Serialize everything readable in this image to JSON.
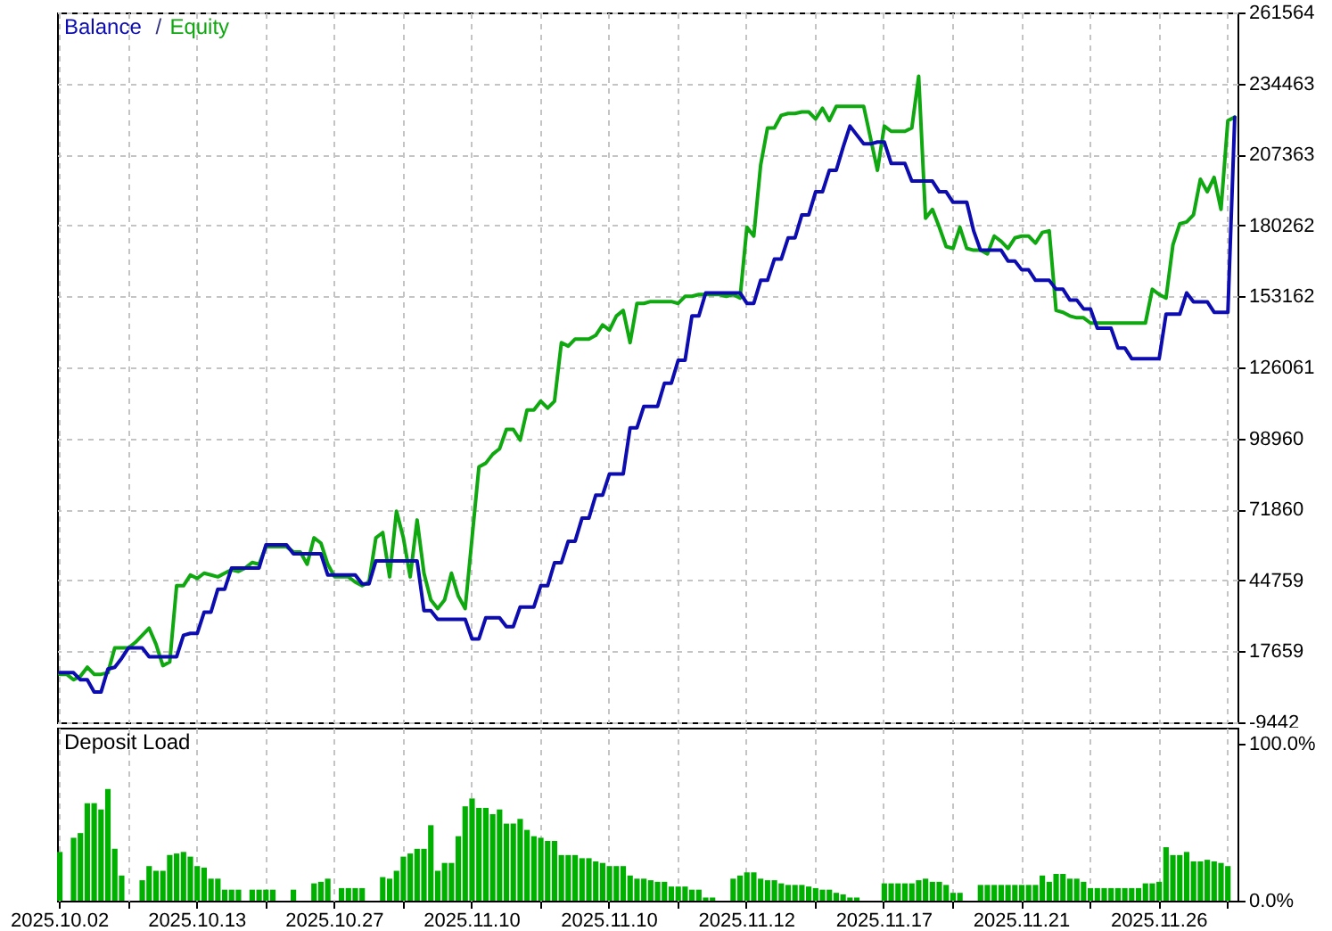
{
  "chart_data": [
    {
      "type": "line",
      "legend": "top left",
      "grid": true,
      "tick_labels": "y",
      "annotations": [
        "/"
      ],
      "categories": [
        "2025.10.02",
        null,
        null,
        null,
        null,
        null,
        null,
        null,
        null,
        null,
        null,
        null,
        null,
        null,
        null,
        null,
        null,
        null,
        null,
        null,
        "2025.10.13",
        null,
        null,
        null,
        null,
        null,
        null,
        null,
        null,
        null,
        null,
        null,
        null,
        null,
        null,
        null,
        null,
        null,
        null,
        null,
        "2025.10.27",
        null,
        null,
        null,
        null,
        null,
        null,
        null,
        null,
        null,
        null,
        null,
        null,
        null,
        null,
        null,
        null,
        null,
        null,
        null,
        "2025.11.10",
        null,
        null,
        null,
        null,
        null,
        null,
        null,
        null,
        null,
        null,
        null,
        null,
        null,
        null,
        null,
        null,
        null,
        null,
        null,
        "2025.11.10",
        null,
        null,
        null,
        null,
        null,
        null,
        null,
        null,
        null,
        null,
        null,
        null,
        null,
        null,
        null,
        null,
        null,
        null,
        null,
        "2025.11.12",
        null,
        null,
        null,
        null,
        null,
        null,
        null,
        null,
        null,
        null,
        null,
        null,
        null,
        null,
        null,
        null,
        null,
        null,
        null,
        "2025.11.17",
        null,
        null,
        null,
        null,
        null,
        null,
        null,
        null,
        null,
        null,
        null,
        null,
        null,
        null,
        null,
        null,
        null,
        null,
        null,
        "2025.11.21",
        null,
        null,
        null,
        null,
        null,
        null,
        null,
        null,
        null,
        null,
        null,
        null,
        null,
        null,
        null,
        null,
        null,
        null,
        null,
        "2025.11.26",
        null,
        null,
        null,
        null,
        null,
        null,
        null,
        null,
        null,
        null,
        null
      ],
      "ylim": [
        -9442,
        261564
      ],
      "yticks": [
        -9442,
        17659,
        44759,
        71860,
        98960,
        126061,
        153162,
        180262,
        207363,
        234463,
        261564
      ],
      "series": [
        {
          "name": "Balance",
          "color": "#0c0cb0",
          "values": [
            9500,
            9500,
            9500,
            6800,
            6800,
            2100,
            2100,
            10900,
            11600,
            15000,
            19000,
            19000,
            19000,
            15600,
            15600,
            15600,
            15600,
            15600,
            23800,
            24500,
            24500,
            32600,
            32600,
            41400,
            41400,
            49500,
            49500,
            49500,
            49500,
            49500,
            58300,
            58300,
            58300,
            58300,
            54900,
            54900,
            54900,
            54900,
            54900,
            46800,
            46800,
            46800,
            46800,
            46800,
            43400,
            43400,
            52200,
            52200,
            52200,
            52200,
            52200,
            52200,
            52200,
            33200,
            33200,
            29900,
            29900,
            29900,
            29900,
            29900,
            22400,
            22400,
            30500,
            30500,
            30500,
            27100,
            27100,
            34600,
            34600,
            34600,
            42700,
            42700,
            51500,
            51500,
            59700,
            59700,
            68500,
            68500,
            77300,
            77300,
            85400,
            85400,
            85400,
            103000,
            103000,
            111200,
            111200,
            111200,
            120000,
            120000,
            128800,
            128800,
            145700,
            145700,
            154500,
            154500,
            154500,
            154500,
            154500,
            154500,
            150500,
            150500,
            159300,
            159300,
            167400,
            167400,
            175500,
            175500,
            184300,
            184300,
            193100,
            193100,
            201300,
            201300,
            210100,
            218200,
            214800,
            211400,
            211400,
            212100,
            212100,
            203900,
            203900,
            203900,
            197200,
            197200,
            197200,
            197200,
            193100,
            193100,
            189100,
            189100,
            189100,
            178200,
            170800,
            170800,
            170800,
            170800,
            166700,
            166700,
            163300,
            163300,
            159300,
            159300,
            159300,
            155900,
            155900,
            151800,
            151800,
            148400,
            148400,
            141000,
            141000,
            141000,
            133500,
            133500,
            129400,
            129400,
            129400,
            129400,
            129400,
            146400,
            146400,
            146400,
            154500,
            151100,
            151100,
            151100,
            147100,
            147100,
            147100,
            221600
          ]
        },
        {
          "name": "Equity",
          "color": "#10a810",
          "values": [
            8900,
            8900,
            6800,
            8200,
            11600,
            8900,
            8900,
            9500,
            19000,
            19000,
            19000,
            21100,
            23800,
            26500,
            20400,
            12200,
            13600,
            42700,
            42700,
            46800,
            45500,
            47500,
            46800,
            46100,
            47500,
            48800,
            48200,
            49500,
            51600,
            50900,
            57600,
            57600,
            57600,
            57600,
            55600,
            55600,
            50900,
            61000,
            59000,
            50900,
            46100,
            46100,
            46100,
            44100,
            42700,
            44100,
            61000,
            63000,
            46100,
            71200,
            61000,
            46100,
            67800,
            47500,
            37300,
            34000,
            37300,
            47500,
            38700,
            34000,
            61000,
            88100,
            89500,
            92900,
            95000,
            102400,
            102400,
            98300,
            109800,
            109800,
            113200,
            110500,
            113200,
            135500,
            134200,
            136900,
            136900,
            136900,
            138300,
            142300,
            140300,
            145700,
            147800,
            135500,
            150500,
            150500,
            151200,
            151200,
            151200,
            151200,
            150500,
            153200,
            153200,
            153900,
            153900,
            153900,
            153900,
            153200,
            153900,
            152500,
            179600,
            176200,
            203300,
            217500,
            217500,
            222300,
            223000,
            223000,
            223600,
            223600,
            220900,
            225000,
            220300,
            225700,
            225700,
            225700,
            225700,
            225700,
            213500,
            201300,
            218200,
            216200,
            216200,
            216200,
            217500,
            237200,
            183000,
            186400,
            179600,
            172200,
            171500,
            179600,
            171500,
            170800,
            170800,
            169400,
            176200,
            174200,
            171500,
            175500,
            176200,
            176200,
            173500,
            177600,
            178200,
            147800,
            147100,
            145700,
            145000,
            145000,
            143000,
            143000,
            143000,
            143000,
            143000,
            143000,
            143000,
            143000,
            143000,
            155900,
            153900,
            152500,
            172800,
            180900,
            181600,
            184300,
            197900,
            193100,
            198600,
            186400,
            220300,
            221600
          ]
        }
      ]
    },
    {
      "type": "bar",
      "title": "Deposit Load",
      "grid": "x",
      "color": "#00b000",
      "categories": [
        "2025.10.02",
        null,
        null,
        null,
        null,
        null,
        null,
        null,
        null,
        null,
        null,
        null,
        null,
        null,
        null,
        null,
        null,
        null,
        null,
        null,
        "2025.10.13",
        null,
        null,
        null,
        null,
        null,
        null,
        null,
        null,
        null,
        null,
        null,
        null,
        null,
        null,
        null,
        null,
        null,
        null,
        null,
        "2025.10.27",
        null,
        null,
        null,
        null,
        null,
        null,
        null,
        null,
        null,
        null,
        null,
        null,
        null,
        null,
        null,
        null,
        null,
        null,
        null,
        "2025.11.10",
        null,
        null,
        null,
        null,
        null,
        null,
        null,
        null,
        null,
        null,
        null,
        null,
        null,
        null,
        null,
        null,
        null,
        null,
        null,
        "2025.11.10",
        null,
        null,
        null,
        null,
        null,
        null,
        null,
        null,
        null,
        null,
        null,
        null,
        null,
        null,
        null,
        null,
        null,
        null,
        null,
        "2025.11.12",
        null,
        null,
        null,
        null,
        null,
        null,
        null,
        null,
        null,
        null,
        null,
        null,
        null,
        null,
        null,
        null,
        null,
        null,
        null,
        "2025.11.17",
        null,
        null,
        null,
        null,
        null,
        null,
        null,
        null,
        null,
        null,
        null,
        null,
        null,
        null,
        null,
        null,
        null,
        null,
        null,
        "2025.11.21",
        null,
        null,
        null,
        null,
        null,
        null,
        null,
        null,
        null,
        null,
        null,
        null,
        null,
        null,
        null,
        null,
        null,
        null,
        null,
        "2025.11.26",
        null,
        null,
        null,
        null,
        null,
        null,
        null,
        null,
        null,
        null,
        null
      ],
      "ylim": [
        0,
        110
      ],
      "yticks": [
        {
          "value": 0,
          "label": "0.0%"
        },
        {
          "value": 100,
          "label": "100.0%"
        }
      ],
      "values": [
        31,
        null,
        40,
        43,
        62,
        62,
        58,
        71,
        33,
        16,
        null,
        null,
        13,
        22,
        19,
        19,
        29,
        30,
        31,
        28,
        22,
        21,
        14,
        14,
        7,
        7,
        7,
        null,
        7,
        7,
        7,
        7,
        null,
        null,
        7,
        null,
        null,
        11,
        12,
        14,
        null,
        8,
        8,
        8,
        8,
        null,
        null,
        15,
        14,
        19,
        28,
        30,
        33,
        33,
        48,
        19,
        24,
        24,
        41,
        60,
        65,
        59,
        59,
        55,
        58,
        49,
        49,
        52,
        45,
        41,
        40,
        38,
        38,
        29,
        29,
        29,
        27,
        27,
        25,
        24,
        22,
        22,
        22,
        16,
        14,
        14,
        13,
        12,
        12,
        9,
        9,
        9,
        7,
        7,
        2,
        2,
        null,
        null,
        14,
        16,
        18,
        18,
        14,
        13,
        13,
        11,
        10,
        10,
        10,
        9,
        8,
        7,
        7,
        5,
        4,
        2,
        2,
        null,
        null,
        null,
        11,
        11,
        11,
        11,
        11,
        13,
        14,
        12,
        12,
        10,
        5,
        5,
        null,
        null,
        10,
        10,
        10,
        10,
        10,
        10,
        10,
        10,
        10,
        16,
        12,
        17,
        17,
        14,
        14,
        12,
        8,
        8,
        8,
        8,
        8,
        8,
        8,
        8,
        11,
        11,
        12,
        34,
        29,
        29,
        31,
        25,
        25,
        26,
        25,
        24,
        22,
        null
      ]
    }
  ]
}
